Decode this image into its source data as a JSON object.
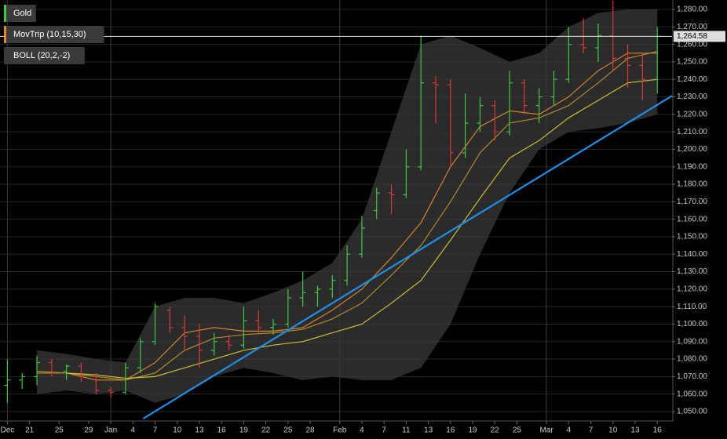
{
  "chart_data": {
    "type": "ohlc",
    "series": [
      {
        "name": "Gold",
        "color": "#3ec93e",
        "down_color": "#d83a3a",
        "x": [
          0,
          2,
          4,
          6,
          8,
          10,
          12,
          14,
          16,
          18,
          20,
          22,
          24,
          26,
          28,
          30,
          32,
          34,
          36,
          38,
          40,
          42,
          44,
          46,
          48,
          50,
          52,
          54,
          56,
          58,
          60,
          62,
          64,
          66,
          68,
          70,
          72,
          74,
          76,
          78,
          80,
          82,
          84,
          86,
          88
        ],
        "open": [
          1065,
          1068,
          1070,
          1078,
          1073,
          1076,
          1070,
          1062,
          1061,
          1075,
          1090,
          1108,
          1098,
          1093,
          1085,
          1090,
          1088,
          1102,
          1098,
          1100,
          1115,
          1118,
          1120,
          1125,
          1140,
          1165,
          1175,
          1174,
          1190,
          1238,
          1237,
          1198,
          1215,
          1225,
          1210,
          1238,
          1225,
          1230,
          1240,
          1260,
          1258,
          1265,
          1252,
          1248,
          1240
        ],
        "high": [
          1080,
          1072,
          1082,
          1080,
          1077,
          1078,
          1072,
          1064,
          1078,
          1092,
          1112,
          1110,
          1105,
          1100,
          1095,
          1094,
          1110,
          1108,
          1103,
          1120,
          1130,
          1122,
          1128,
          1145,
          1162,
          1178,
          1180,
          1200,
          1265,
          1242,
          1240,
          1232,
          1230,
          1228,
          1245,
          1240,
          1235,
          1245,
          1270,
          1275,
          1272,
          1285,
          1260,
          1255,
          1270
        ],
        "low": [
          1055,
          1063,
          1065,
          1070,
          1068,
          1067,
          1060,
          1058,
          1060,
          1072,
          1088,
          1095,
          1085,
          1075,
          1082,
          1085,
          1086,
          1095,
          1094,
          1098,
          1110,
          1110,
          1115,
          1122,
          1138,
          1160,
          1163,
          1172,
          1188,
          1215,
          1190,
          1195,
          1210,
          1205,
          1208,
          1220,
          1215,
          1225,
          1238,
          1255,
          1250,
          1245,
          1235,
          1228,
          1232
        ],
        "close": [
          1068,
          1070,
          1078,
          1072,
          1076,
          1070,
          1062,
          1061,
          1075,
          1090,
          1110,
          1098,
          1093,
          1085,
          1090,
          1088,
          1102,
          1098,
          1100,
          1115,
          1118,
          1120,
          1125,
          1140,
          1155,
          1175,
          1174,
          1190,
          1238,
          1237,
          1198,
          1215,
          1225,
          1210,
          1238,
          1225,
          1230,
          1240,
          1260,
          1258,
          1265,
          1252,
          1248,
          1240,
          1264.58
        ]
      }
    ],
    "indicators": [
      {
        "name": "MovTrip (10,15,30)",
        "color": "#e08a2a",
        "x": [
          4,
          8,
          12,
          16,
          20,
          24,
          28,
          32,
          36,
          40,
          44,
          48,
          52,
          56,
          60,
          64,
          68,
          72,
          76,
          80,
          84,
          88
        ],
        "lines": [
          {
            "color": "#d9822b",
            "values": [
              1073,
              1072,
              1068,
              1068,
              1078,
              1095,
              1098,
              1096,
              1096,
              1098,
              1108,
              1120,
              1138,
              1158,
              1190,
              1213,
              1222,
              1220,
              1230,
              1245,
              1255,
              1255
            ]
          },
          {
            "color": "#b08a2a",
            "values": [
              1072,
              1072,
              1070,
              1068,
              1072,
              1085,
              1092,
              1094,
              1095,
              1097,
              1103,
              1112,
              1128,
              1145,
              1170,
              1198,
              1215,
              1218,
              1225,
              1238,
              1252,
              1256
            ]
          },
          {
            "color": "#c8c030",
            "values": [
              null,
              1072,
              1071,
              1069,
              1070,
              1075,
              1080,
              1085,
              1088,
              1090,
              1095,
              1100,
              1112,
              1125,
              1148,
              1172,
              1195,
              1205,
              1218,
              1228,
              1238,
              1240
            ]
          }
        ]
      },
      {
        "name": "BOLL (20,2,-2)",
        "color": "#3a3a3a",
        "x": [
          4,
          8,
          12,
          16,
          20,
          24,
          28,
          32,
          36,
          40,
          44,
          48,
          52,
          56,
          60,
          64,
          68,
          72,
          76,
          80,
          84,
          88
        ],
        "upper": [
          1085,
          1083,
          1080,
          1078,
          1110,
          1115,
          1115,
          1112,
          1118,
          1125,
          1135,
          1160,
          1210,
          1260,
          1265,
          1258,
          1250,
          1255,
          1270,
          1278,
          1280,
          1280
        ],
        "lower": [
          1060,
          1062,
          1060,
          1062,
          1055,
          1060,
          1070,
          1075,
          1072,
          1068,
          1070,
          1068,
          1068,
          1075,
          1100,
          1140,
          1175,
          1200,
          1210,
          1212,
          1215,
          1220
        ]
      }
    ],
    "trendline": {
      "color": "#1e8fe6",
      "x": [
        18.4,
        90
      ],
      "values": [
        1046,
        1230.6
      ]
    },
    "last_price": {
      "value": 1264.58,
      "label": "1,264.58"
    },
    "xlim": [
      -1,
      90
    ],
    "xticks": [
      {
        "value": 0,
        "label": "Dec"
      },
      {
        "value": 3,
        "label": "21"
      },
      {
        "value": 7,
        "label": "25"
      },
      {
        "value": 11,
        "label": "29"
      },
      {
        "value": 14,
        "label": "Jan"
      },
      {
        "value": 17,
        "label": "4"
      },
      {
        "value": 20,
        "label": "7"
      },
      {
        "value": 23,
        "label": "10"
      },
      {
        "value": 26,
        "label": "13"
      },
      {
        "value": 29,
        "label": "16"
      },
      {
        "value": 32,
        "label": "19"
      },
      {
        "value": 35,
        "label": "22"
      },
      {
        "value": 38,
        "label": "25"
      },
      {
        "value": 41,
        "label": "28"
      },
      {
        "value": 45,
        "label": "Feb"
      },
      {
        "value": 48,
        "label": "4"
      },
      {
        "value": 51,
        "label": "7"
      },
      {
        "value": 54,
        "label": "11"
      },
      {
        "value": 57,
        "label": "13"
      },
      {
        "value": 60,
        "label": "16"
      },
      {
        "value": 63,
        "label": "19"
      },
      {
        "value": 66,
        "label": "22"
      },
      {
        "value": 69,
        "label": "25"
      },
      {
        "value": 73,
        "label": "Mar"
      },
      {
        "value": 76,
        "label": "4"
      },
      {
        "value": 79,
        "label": "7"
      },
      {
        "value": 82,
        "label": "10"
      },
      {
        "value": 85,
        "label": "13"
      },
      {
        "value": 88,
        "label": "16"
      }
    ],
    "ylim": [
      1044.6,
      1285.4
    ],
    "yticks": [
      {
        "value": 1050,
        "label": "1,050.00"
      },
      {
        "value": 1060,
        "label": "1,060.00"
      },
      {
        "value": 1070,
        "label": "1,070.00"
      },
      {
        "value": 1080,
        "label": "1,080.00"
      },
      {
        "value": 1090,
        "label": "1,090.00"
      },
      {
        "value": 1100,
        "label": "1,100.00"
      },
      {
        "value": 1110,
        "label": "1,110.00"
      },
      {
        "value": 1120,
        "label": "1,120.00"
      },
      {
        "value": 1130,
        "label": "1,130.00"
      },
      {
        "value": 1140,
        "label": "1,140.00"
      },
      {
        "value": 1150,
        "label": "1,150.00"
      },
      {
        "value": 1160,
        "label": "1,160.00"
      },
      {
        "value": 1170,
        "label": "1,170.00"
      },
      {
        "value": 1180,
        "label": "1,180.00"
      },
      {
        "value": 1190,
        "label": "1,190.00"
      },
      {
        "value": 1200,
        "label": "1,200.00"
      },
      {
        "value": 1210,
        "label": "1,210.00"
      },
      {
        "value": 1220,
        "label": "1,220.00"
      },
      {
        "value": 1230,
        "label": "1,230.00"
      },
      {
        "value": 1240,
        "label": "1,240.00"
      },
      {
        "value": 1250,
        "label": "1,250.00"
      },
      {
        "value": 1260,
        "label": "1,260.00"
      },
      {
        "value": 1270,
        "label": "1,270.00"
      },
      {
        "value": 1280,
        "label": "1,280.00"
      }
    ],
    "grid": true
  }
}
